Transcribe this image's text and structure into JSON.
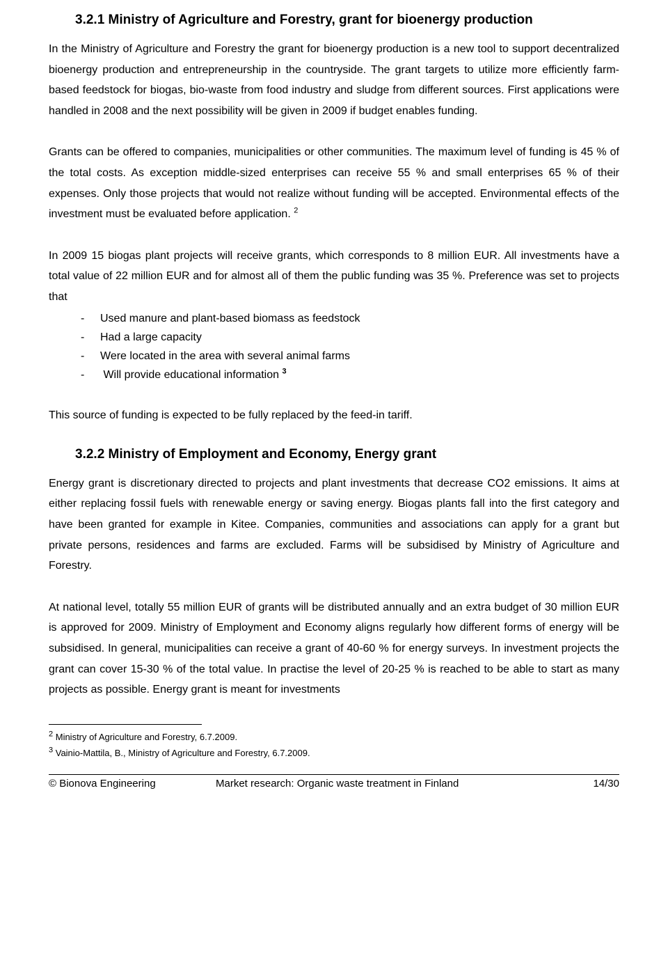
{
  "section1": {
    "heading": "3.2.1  Ministry of Agriculture and Forestry, grant for bioenergy production",
    "para1": "In the Ministry of Agriculture and Forestry the grant for bioenergy production is a new tool to support decentralized bioenergy production and entrepreneurship in the countryside. The grant targets to utilize more efficiently farm-based feedstock for biogas, bio-waste from food industry and sludge from different sources. First applications were handled in 2008 and the next possibility will be given in 2009 if budget enables funding.",
    "para2_pre": "Grants can be offered to companies, municipalities or other communities. The maximum level of funding is 45 % of the total costs. As exception middle-sized enterprises can receive 55 % and small enterprises 65 % of their expenses. Only those projects that would not realize without funding will be accepted. Environmental effects of the investment must be evaluated before application. ",
    "para2_sup": "2",
    "para3_lead": "In 2009 15 biogas plant projects will receive grants, which corresponds to 8 million EUR. All investments have a total value of 22 million EUR and for almost all of them the public funding was 35 %. Preference was set to projects that",
    "bullets": [
      "Used manure and plant-based biomass as feedstock",
      "Had a large capacity",
      "Were located in the area with several animal farms"
    ],
    "bullet4_pre": "Will provide educational information ",
    "bullet4_sup": "3",
    "para4": "This source of funding is expected to be fully replaced by the feed-in tariff."
  },
  "section2": {
    "heading": "3.2.2  Ministry of Employment and Economy, Energy grant",
    "para1": "Energy grant is discretionary directed to projects and plant investments that decrease CO2 emissions. It aims at either replacing fossil fuels with renewable energy or saving energy. Biogas plants fall into the first category and have been granted for example in Kitee. Companies, communities and associations can apply for a grant but private persons, residences and farms are excluded. Farms will be subsidised by Ministry of Agriculture and Forestry.",
    "para2": "At national level, totally 55 million EUR of grants will be distributed annually and an extra budget of 30 million EUR is approved for 2009. Ministry of Employment and Economy aligns regularly how different forms of energy will be subsidised. In general, municipalities can receive a grant of 40-60 % for energy surveys. In investment projects the grant can cover 15-30 % of the total value. In practise the level of 20-25 % is reached to be able to start as many projects as possible. Energy grant is meant for investments"
  },
  "footnotes": {
    "fn2_sup": "2",
    "fn2_text": " Ministry of Agriculture and Forestry, 6.7.2009.",
    "fn3_sup": "3",
    "fn3_text": " Vainio-Mattila, B., Ministry of Agriculture and Forestry, 6.7.2009."
  },
  "footer": {
    "left": "© Bionova Engineering",
    "mid": "Market research: Organic waste treatment in Finland",
    "right": "14/30"
  }
}
